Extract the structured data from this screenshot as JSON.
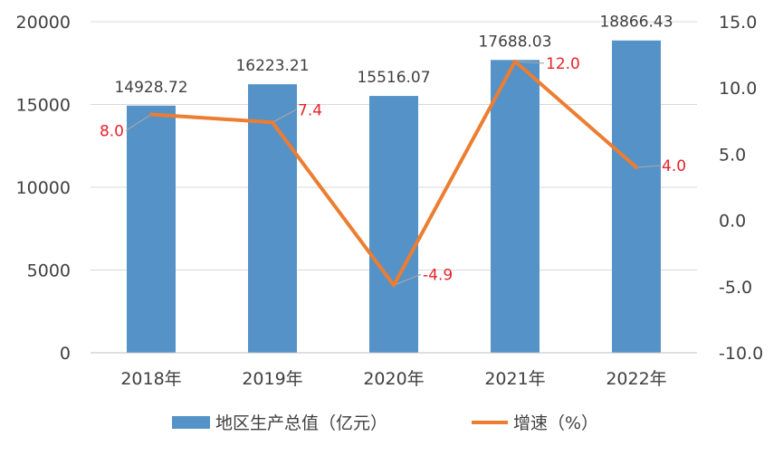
{
  "chart_data": {
    "type": "bar",
    "categories": [
      "2018年",
      "2019年",
      "2020年",
      "2021年",
      "2022年"
    ],
    "series": [
      {
        "name": "地区生产总值（亿元）",
        "type": "bar",
        "axis": "left",
        "values": [
          14928.72,
          16223.21,
          15516.07,
          17688.03,
          18866.43
        ],
        "labels": [
          "14928.72",
          "16223.21",
          "15516.07",
          "17688.03",
          "18866.43"
        ],
        "color": "#5592c8"
      },
      {
        "name": "增速（%）",
        "type": "line",
        "axis": "right",
        "values": [
          8.0,
          7.4,
          -4.9,
          12.0,
          4.0
        ],
        "labels": [
          "8.0",
          "7.4",
          "-4.9",
          "12.0",
          "4.0"
        ],
        "color": "#ed7d31",
        "label_color": "#e8222a"
      }
    ],
    "y_left": {
      "ylim": [
        0,
        20000
      ],
      "ticks": [
        "0",
        "5000",
        "10000",
        "15000",
        "20000"
      ]
    },
    "y_right": {
      "ylim": [
        -10,
        15
      ],
      "ticks": [
        "-10.0",
        "-5.0",
        "0.0",
        "5.0",
        "10.0",
        "15.0"
      ]
    },
    "grid": true,
    "legend_position": "bottom",
    "grid_color": "#d9d9d9"
  }
}
